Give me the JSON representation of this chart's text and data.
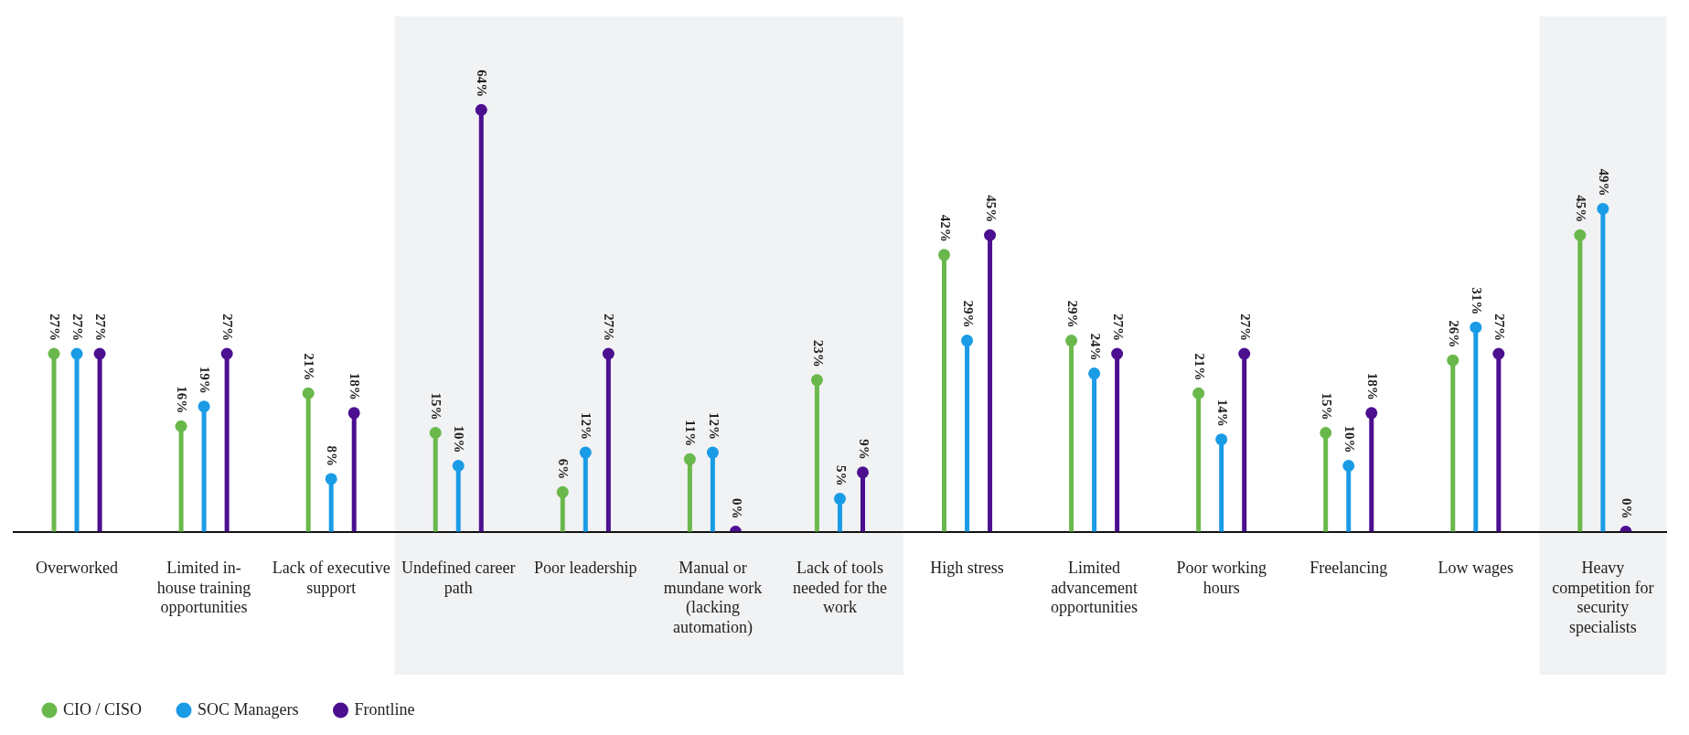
{
  "chart_data": {
    "type": "lollipop",
    "categories": [
      "Overworked",
      "Limited in-house training opportunities",
      "Lack of executive support",
      "Undefined career path",
      "Poor leadership",
      "Manual or mundane work (lacking automation)",
      "Lack of tools needed for the work",
      "High stress",
      "Limited advancement opportunities",
      "Poor working hours",
      "Freelancing",
      "Low wages",
      "Heavy competition for security specialists"
    ],
    "series": [
      {
        "name": "CIO / CISO",
        "color": "#6ab84c",
        "values": [
          27,
          16,
          21,
          15,
          6,
          11,
          23,
          42,
          29,
          21,
          15,
          26,
          45
        ],
        "value_labels": [
          "27%",
          "16%",
          "21%",
          "15%",
          "6%",
          "11%",
          "23%",
          "42%",
          "29%",
          "21%",
          "15%",
          "26%",
          "45%"
        ]
      },
      {
        "name": "SOC Managers",
        "color": "#1a9be6",
        "values": [
          27,
          19,
          8,
          10,
          12,
          12,
          5,
          29,
          24,
          14,
          10,
          31,
          49
        ],
        "value_labels": [
          "27%",
          "19%",
          "8%",
          "10%",
          "12%",
          "12%",
          "5%",
          "29%",
          "24%",
          "14%",
          "10%",
          "31%",
          "49%"
        ]
      },
      {
        "name": "Frontline",
        "color": "#4b0f8f",
        "values": [
          27,
          27,
          18,
          64,
          27,
          0,
          9,
          45,
          27,
          27,
          18,
          27,
          0
        ],
        "value_labels": [
          "27%",
          "27%",
          "18%",
          "64%",
          "27%",
          "0%",
          "9%",
          "45%",
          "27%",
          "27%",
          "18%",
          "27%",
          "0%"
        ]
      }
    ],
    "bands": [
      {
        "axis": "x",
        "from": "Undefined career path",
        "to": "Lack of tools needed for the work",
        "color": "#f1f2f4"
      },
      {
        "axis": "x",
        "from": "Heavy competition for security specialists",
        "to": "Heavy competition for security specialists",
        "color": "#f1f2f4"
      }
    ],
    "legend": "bottom left",
    "grid": false
  }
}
